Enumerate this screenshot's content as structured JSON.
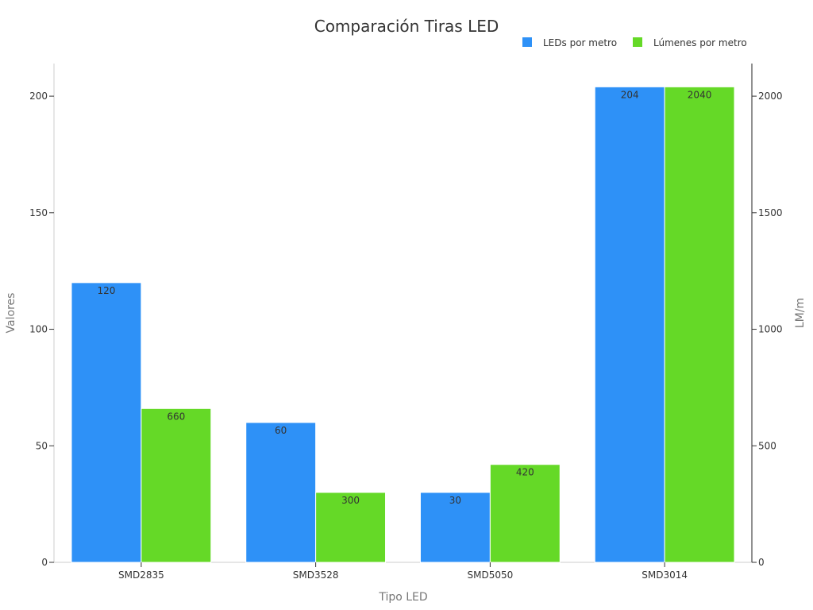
{
  "chart_data": {
    "type": "bar",
    "title": "Comparación Tiras LED",
    "xlabel": "Tipo LED",
    "ylabel_left": "Valores",
    "ylabel_right": "LM/m",
    "categories": [
      "SMD2835",
      "SMD3528",
      "SMD5050",
      "SMD3014"
    ],
    "series": [
      {
        "name": "LEDs por metro",
        "axis": "left",
        "color": "#2e91f7",
        "values": [
          120,
          60,
          30,
          204
        ],
        "labels": [
          "120",
          "60",
          "30",
          "204"
        ]
      },
      {
        "name": "Lúmenes por metro",
        "axis": "right",
        "color": "#65d927",
        "values": [
          660,
          300,
          420,
          2040
        ],
        "labels": [
          "660",
          "300",
          "420",
          "2040"
        ]
      }
    ],
    "ylim_left": [
      0,
      214
    ],
    "ylim_right": [
      0,
      2140
    ],
    "yticks_left": [
      "0",
      "50",
      "100",
      "150",
      "200"
    ],
    "yticks_right": [
      "0",
      "500",
      "1000",
      "1500",
      "2000"
    ],
    "legend_position": "top-right",
    "grid": false
  }
}
